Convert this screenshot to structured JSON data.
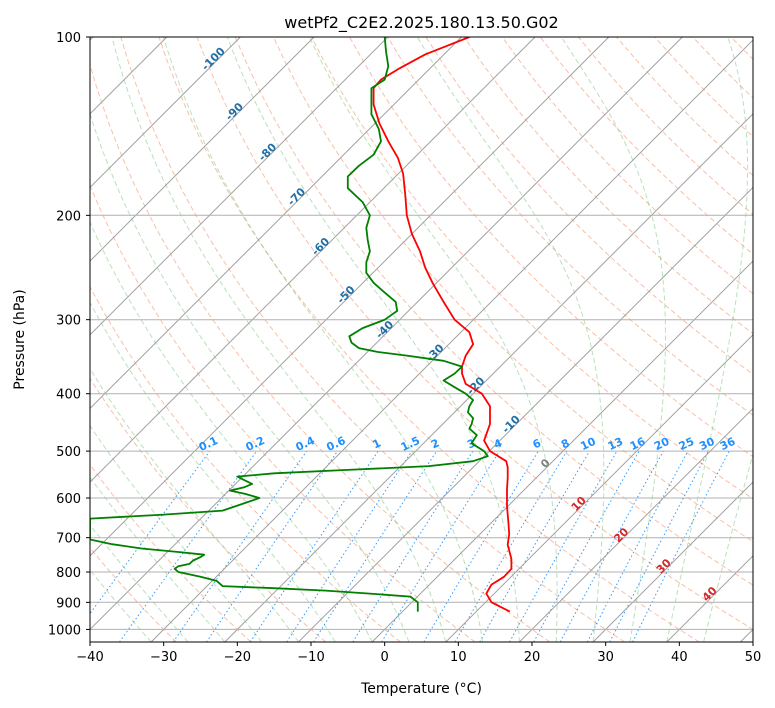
{
  "chart_data": {
    "type": "skew-t",
    "title": "wetPf2_C2E2.2025.180.13.50.G02",
    "xlabel": "Temperature (°C)",
    "ylabel": "Pressure (hPa)",
    "xlim": [
      -40,
      50
    ],
    "ylim": [
      1050,
      100
    ],
    "x_ticks": [
      -40,
      -30,
      -20,
      -10,
      0,
      10,
      20,
      30,
      40,
      50
    ],
    "x_tick_labels": [
      "−40",
      "−30",
      "−20",
      "−10",
      "0",
      "10",
      "20",
      "30",
      "40",
      "50"
    ],
    "y_ticks": [
      100,
      200,
      300,
      400,
      500,
      600,
      700,
      800,
      900,
      1000
    ],
    "y_tick_labels": [
      "100",
      "200",
      "300",
      "400",
      "500",
      "600",
      "700",
      "800",
      "900",
      "1000"
    ],
    "y_scale": "log",
    "grid": true,
    "series": [
      {
        "kind": "temperature",
        "color": "#ff0000",
        "points": [
          {
            "p": 933,
            "t": 17.0
          },
          {
            "p": 900,
            "t": 14.5
          },
          {
            "p": 870,
            "t": 13.8
          },
          {
            "p": 840,
            "t": 14.5
          },
          {
            "p": 815,
            "t": 16.2
          },
          {
            "p": 790,
            "t": 17.2
          },
          {
            "p": 760,
            "t": 17.2
          },
          {
            "p": 720,
            "t": 16.7
          },
          {
            "p": 690,
            "t": 16.9
          },
          {
            "p": 660,
            "t": 16.8
          },
          {
            "p": 620,
            "t": 16.6
          },
          {
            "p": 580,
            "t": 16.6
          },
          {
            "p": 555,
            "t": 16.7
          },
          {
            "p": 532,
            "t": 16.7
          },
          {
            "p": 520,
            "t": 16.5
          },
          {
            "p": 500,
            "t": 14.3
          },
          {
            "p": 480,
            "t": 13.5
          },
          {
            "p": 450,
            "t": 14.3
          },
          {
            "p": 420,
            "t": 14.3
          },
          {
            "p": 400,
            "t": 13.2
          },
          {
            "p": 385,
            "t": 11.0
          },
          {
            "p": 370,
            "t": 10.5
          },
          {
            "p": 360,
            "t": 10.5
          },
          {
            "p": 345,
            "t": 11.0
          },
          {
            "p": 330,
            "t": 12.0
          },
          {
            "p": 315,
            "t": 11.5
          },
          {
            "p": 300,
            "t": 9.5
          },
          {
            "p": 280,
            "t": 8.0
          },
          {
            "p": 260,
            "t": 6.5
          },
          {
            "p": 245,
            "t": 5.5
          },
          {
            "p": 230,
            "t": 4.8
          },
          {
            "p": 215,
            "t": 3.7
          },
          {
            "p": 200,
            "t": 3.0
          },
          {
            "p": 185,
            "t": 2.8
          },
          {
            "p": 170,
            "t": 2.5
          },
          {
            "p": 160,
            "t": 1.8
          },
          {
            "p": 150,
            "t": 0.5
          },
          {
            "p": 140,
            "t": -0.7
          },
          {
            "p": 130,
            "t": -1.5
          },
          {
            "p": 122,
            "t": -1.5
          },
          {
            "p": 118,
            "t": -0.5
          },
          {
            "p": 113,
            "t": 2.0
          },
          {
            "p": 107,
            "t": 5.5
          },
          {
            "p": 100,
            "t": 11.5
          }
        ]
      },
      {
        "kind": "dewpoint",
        "color": "#008000",
        "points": [
          {
            "p": 933,
            "t": 4.5
          },
          {
            "p": 900,
            "t": 4.5
          },
          {
            "p": 880,
            "t": 3.5
          },
          {
            "p": 870,
            "t": -2.0
          },
          {
            "p": 860,
            "t": -8.0
          },
          {
            "p": 852,
            "t": -15.0
          },
          {
            "p": 845,
            "t": -22.0
          },
          {
            "p": 828,
            "t": -22.8
          },
          {
            "p": 815,
            "t": -25.0
          },
          {
            "p": 800,
            "t": -28.0
          },
          {
            "p": 790,
            "t": -28.5
          },
          {
            "p": 782,
            "t": -28.0
          },
          {
            "p": 775,
            "t": -26.5
          },
          {
            "p": 765,
            "t": -26.0
          },
          {
            "p": 755,
            "t": -25.0
          },
          {
            "p": 748,
            "t": -24.5
          },
          {
            "p": 740,
            "t": -28.0
          },
          {
            "p": 730,
            "t": -33.0
          },
          {
            "p": 718,
            "t": -37.0
          },
          {
            "p": 705,
            "t": -40.0
          },
          {
            "p": 650,
            "t": -40.0
          },
          {
            "p": 640,
            "t": -30.0
          },
          {
            "p": 630,
            "t": -22.0
          },
          {
            "p": 615,
            "t": -19.5
          },
          {
            "p": 600,
            "t": -17.0
          },
          {
            "p": 590,
            "t": -19.0
          },
          {
            "p": 583,
            "t": -21.0
          },
          {
            "p": 575,
            "t": -19.0
          },
          {
            "p": 568,
            "t": -18.0
          },
          {
            "p": 560,
            "t": -19.0
          },
          {
            "p": 552,
            "t": -20.0
          },
          {
            "p": 545,
            "t": -15.0
          },
          {
            "p": 538,
            "t": -5.0
          },
          {
            "p": 530,
            "t": 6.0
          },
          {
            "p": 520,
            "t": 12.0
          },
          {
            "p": 510,
            "t": 14.0
          },
          {
            "p": 500,
            "t": 13.5
          },
          {
            "p": 485,
            "t": 11.8
          },
          {
            "p": 470,
            "t": 12.5
          },
          {
            "p": 458,
            "t": 11.5
          },
          {
            "p": 450,
            "t": 11.8
          },
          {
            "p": 440,
            "t": 12.0
          },
          {
            "p": 430,
            "t": 11.3
          },
          {
            "p": 420,
            "t": 11.5
          },
          {
            "p": 410,
            "t": 12.0
          },
          {
            "p": 400,
            "t": 11.0
          },
          {
            "p": 390,
            "t": 9.5
          },
          {
            "p": 380,
            "t": 8.0
          },
          {
            "p": 370,
            "t": 9.5
          },
          {
            "p": 360,
            "t": 10.5
          },
          {
            "p": 352,
            "t": 8.0
          },
          {
            "p": 345,
            "t": 3.0
          },
          {
            "p": 340,
            "t": -1.0
          },
          {
            "p": 335,
            "t": -3.5
          },
          {
            "p": 328,
            "t": -4.5
          },
          {
            "p": 320,
            "t": -4.8
          },
          {
            "p": 310,
            "t": -3.0
          },
          {
            "p": 300,
            "t": 0.0
          },
          {
            "p": 290,
            "t": 1.7
          },
          {
            "p": 280,
            "t": 1.5
          },
          {
            "p": 270,
            "t": 0.0
          },
          {
            "p": 260,
            "t": -1.5
          },
          {
            "p": 250,
            "t": -2.5
          },
          {
            "p": 240,
            "t": -2.5
          },
          {
            "p": 230,
            "t": -2.0
          },
          {
            "p": 220,
            "t": -2.3
          },
          {
            "p": 210,
            "t": -2.5
          },
          {
            "p": 200,
            "t": -2.0
          },
          {
            "p": 190,
            "t": -3.0
          },
          {
            "p": 180,
            "t": -5.0
          },
          {
            "p": 172,
            "t": -5.0
          },
          {
            "p": 165,
            "t": -3.5
          },
          {
            "p": 158,
            "t": -1.5
          },
          {
            "p": 150,
            "t": -0.5
          },
          {
            "p": 143,
            "t": -0.8
          },
          {
            "p": 135,
            "t": -1.8
          },
          {
            "p": 128,
            "t": -1.8
          },
          {
            "p": 122,
            "t": -1.8
          },
          {
            "p": 118,
            "t": 0.0
          },
          {
            "p": 112,
            "t": 0.5
          },
          {
            "p": 106,
            "t": 0.2
          },
          {
            "p": 100,
            "t": 0.0
          }
        ]
      }
    ],
    "isotherm_labels": [
      "-100",
      "-90",
      "-80",
      "-70",
      "-60",
      "-50",
      "-40",
      "-30",
      "-20",
      "-10"
    ],
    "isotherm_label_color": "#1f6fa8",
    "mixing_ratio_labels": [
      "0.1",
      "0.2",
      "0.4",
      "0.6",
      "1",
      "1.5",
      "2",
      "3",
      "4",
      "6",
      "8",
      "10",
      "13",
      "16",
      "20",
      "25",
      "30",
      "36"
    ],
    "mixing_ratio_label_color": "#1e90ff",
    "isotherm_zero_label": "0",
    "isotherm_zero_color": "#808080",
    "warm_isotherm_labels": [
      "10",
      "20",
      "30",
      "40"
    ],
    "warm_isotherm_color": "#d62728"
  }
}
